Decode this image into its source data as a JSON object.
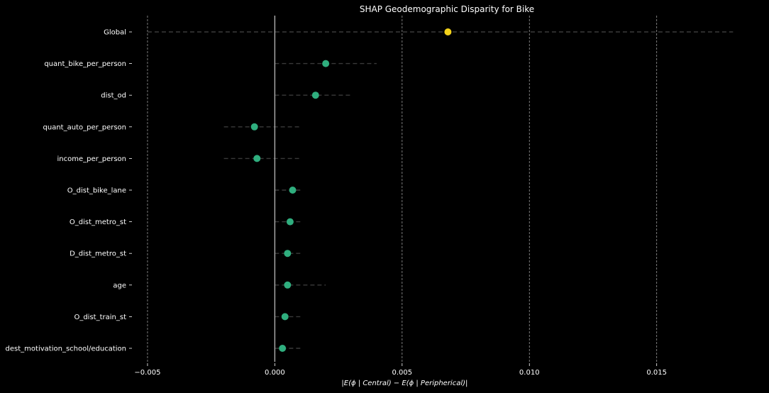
{
  "chart_data": {
    "type": "scatter",
    "title": "SHAP Geodemographic Disparity for Bike",
    "xlabel": "|E(ϕ | Central) − E(ϕ | Peripherical)|",
    "ylabel": "",
    "xlim": [
      -0.0055,
      0.0193
    ],
    "xticks": [
      -0.005,
      0.0,
      0.005,
      0.01,
      0.015
    ],
    "xtick_labels": [
      "−0.005",
      "0.000",
      "0.005",
      "0.010",
      "0.015"
    ],
    "grid": "vertical dashed",
    "legend": "none",
    "categories": [
      "Global",
      "quant_bike_per_person",
      "dist_od",
      "quant_auto_per_person",
      "income_per_person",
      "O_dist_bike_lane",
      "O_dist_metro_st",
      "D_dist_metro_st",
      "age",
      "O_dist_train_st",
      "dest_motivation_school/education"
    ],
    "values": [
      0.0068,
      0.002,
      0.0016,
      -0.0008,
      -0.0007,
      0.0007,
      0.0006,
      0.0005,
      0.0005,
      0.0004,
      0.0003
    ],
    "ci_low": [
      -0.005,
      0.0,
      0.0,
      -0.002,
      -0.002,
      0.0,
      0.0,
      0.0,
      0.0,
      0.0,
      0.0
    ],
    "ci_high": [
      0.018,
      0.004,
      0.003,
      0.001,
      0.001,
      0.001,
      0.001,
      0.001,
      0.002,
      0.001,
      0.001
    ],
    "colors": {
      "background": "#000000",
      "global_point": "#f3d21a",
      "feature_point": "#2fae7e",
      "errorbar": "#3a3a3a",
      "zero_line": "#b0b0b0",
      "grid": "#9a9a9a",
      "text": "#ffffff"
    }
  }
}
